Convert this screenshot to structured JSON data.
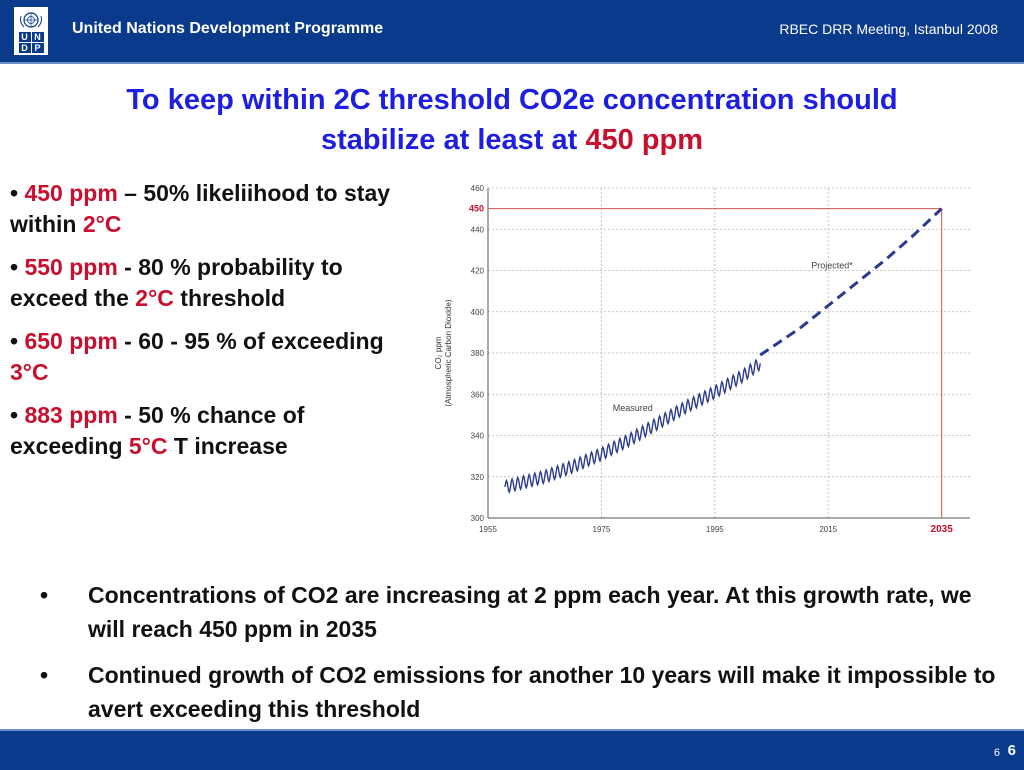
{
  "header": {
    "org_name": "United Nations Development Programme",
    "meeting": "RBEC DRR Meeting, Istanbul 2008",
    "logo_letters": [
      "U",
      "N",
      "D",
      "P"
    ]
  },
  "title": {
    "line1": "To keep within 2C threshold CO2e concentration should",
    "line2_prefix": "stabilize at least at ",
    "line2_highlight": "450 ppm"
  },
  "left_bullets": [
    {
      "bullet": "•",
      "highlight": "450 ppm",
      "text1": " – 50% likeliihood to stay within ",
      "temp": "2°C",
      "text2": ""
    },
    {
      "bullet": "•",
      "highlight": "550 ppm",
      "text1": "  - 80 % probability to exceed the ",
      "temp": "2°C",
      "text2": " threshold"
    },
    {
      "bullet": "•",
      "highlight": "650 ppm",
      "text1": "  - 60 - 95 % of exceeding ",
      "temp": "3°C",
      "text2": ""
    },
    {
      "bullet": "•",
      "highlight": "883 ppm",
      "text1": " -  50 % chance of exceeding ",
      "temp": "5°C",
      "text2": " T increase"
    }
  ],
  "chart_data": {
    "type": "line",
    "ylabel_line1": "CO₂ ppm",
    "ylabel_line2": "(Atmospheric Carbon Dioxide)",
    "ylim": [
      300,
      460
    ],
    "xlim": [
      1955,
      2040
    ],
    "yticks": [
      "300",
      "320",
      "340",
      "360",
      "380",
      "400",
      "420",
      "440",
      "460"
    ],
    "xticks": [
      "1955",
      "1975",
      "1995",
      "2015"
    ],
    "highlight_x": "2035",
    "highlight_y": "450",
    "grid": true,
    "series": [
      {
        "name": "Measured",
        "style": "solid",
        "color": "#2b3a8f",
        "x": [
          1958,
          1965,
          1970,
          1975,
          1980,
          1985,
          1990,
          1995,
          2000,
          2003
        ],
        "y": [
          315,
          320,
          325,
          331,
          338,
          346,
          354,
          361,
          369,
          375
        ]
      },
      {
        "name": "Projected*",
        "style": "dashed",
        "color": "#2b3a8f",
        "x": [
          2003,
          2010,
          2015,
          2020,
          2025,
          2030,
          2035
        ],
        "y": [
          379,
          392,
          403,
          414,
          425,
          437,
          450
        ]
      }
    ]
  },
  "bottom_bullets": [
    {
      "bullet": "•",
      "text": "Concentrations of CO2 are increasing at 2 ppm each year. At this growth rate, we will reach 450 ppm in 2035"
    },
    {
      "bullet": "•",
      "text": "Continued growth of CO2 emissions for another 10 years will make it impossible to avert exceeding this threshold"
    }
  ],
  "footer": {
    "page_small": "6",
    "page_big": "6"
  },
  "colors": {
    "brand_blue": "#0a3a8c",
    "title_blue": "#1e1ee0",
    "highlight_red": "#c8102e"
  }
}
